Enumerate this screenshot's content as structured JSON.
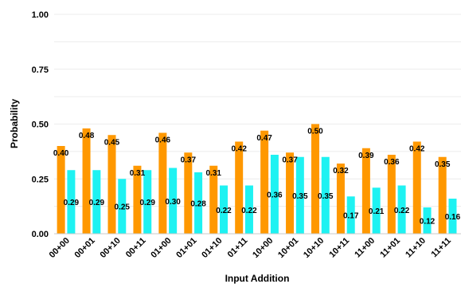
{
  "chart_data": {
    "type": "bar",
    "title": "",
    "xlabel": "Input Addition",
    "ylabel": "Probability",
    "ylim": [
      0,
      1
    ],
    "yticks": [
      "0.00",
      "0.25",
      "0.50",
      "0.75",
      "1.00"
    ],
    "ytick_values": [
      0,
      0.25,
      0.5,
      0.75,
      1.0
    ],
    "grid": true,
    "legend": "none",
    "categories": [
      "00+00",
      "00+01",
      "00+10",
      "00+11",
      "01+00",
      "01+01",
      "01+10",
      "01+11",
      "10+00",
      "10+01",
      "10+10",
      "10+11",
      "11+00",
      "11+01",
      "11+10",
      "11+11"
    ],
    "series": [
      {
        "color": "#ff9800",
        "values": [
          0.4,
          0.48,
          0.45,
          0.31,
          0.46,
          0.37,
          0.31,
          0.42,
          0.47,
          0.37,
          0.5,
          0.32,
          0.39,
          0.36,
          0.42,
          0.35
        ],
        "labels": [
          "0.40",
          "0.48",
          "0.45",
          "0.31",
          "0.46",
          "0.37",
          "0.31",
          "0.42",
          "0.47",
          "0.37",
          "0.50",
          "0.32",
          "0.39",
          "0.36",
          "0.42",
          "0.35"
        ]
      },
      {
        "color": "#1ef2f2",
        "values": [
          0.29,
          0.29,
          0.25,
          0.29,
          0.3,
          0.28,
          0.22,
          0.22,
          0.36,
          0.35,
          0.35,
          0.17,
          0.21,
          0.22,
          0.12,
          0.16
        ],
        "labels": [
          "0.29",
          "0.29",
          "0.25",
          "0.29",
          "0.30",
          "0.28",
          "0.22",
          "0.22",
          "0.36",
          "0.35",
          "0.35",
          "0.17",
          "0.21",
          "0.22",
          "0.12",
          "0.16"
        ]
      }
    ]
  }
}
